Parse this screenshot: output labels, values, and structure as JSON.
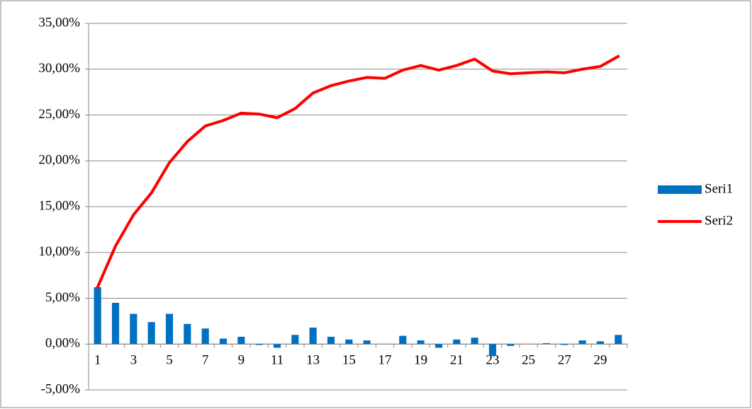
{
  "chart_data": {
    "type": "combo",
    "categories": [
      "1",
      null,
      "3",
      null,
      "5",
      null,
      "7",
      null,
      "9",
      null,
      "11",
      null,
      "13",
      null,
      "15",
      null,
      "17",
      null,
      "19",
      null,
      "21",
      null,
      "23",
      null,
      "25",
      null,
      "27",
      null,
      "29",
      null
    ],
    "series": [
      {
        "name": "Seri1",
        "type": "bar",
        "color": "#0070c0",
        "values": [
          6.2,
          4.5,
          3.3,
          2.4,
          3.3,
          2.2,
          1.7,
          0.6,
          0.8,
          -0.1,
          -0.4,
          1.0,
          1.8,
          0.8,
          0.5,
          0.4,
          0.0,
          0.9,
          0.4,
          -0.4,
          0.5,
          0.7,
          -1.3,
          -0.2,
          0.0,
          0.1,
          -0.1,
          0.4,
          0.3,
          1.0
        ]
      },
      {
        "name": "Seri2",
        "type": "line",
        "color": "#ff0000",
        "values": [
          6.2,
          10.7,
          14.1,
          16.5,
          19.8,
          22.1,
          23.8,
          24.4,
          25.2,
          25.1,
          24.7,
          25.7,
          27.4,
          28.2,
          28.7,
          29.1,
          29.0,
          29.9,
          30.4,
          29.9,
          30.4,
          31.1,
          29.8,
          29.5,
          29.6,
          29.7,
          29.6,
          30.0,
          30.3,
          31.4
        ]
      }
    ],
    "ylim": [
      -5,
      35
    ],
    "yticks": [
      {
        "value": -5,
        "label": "-5,00%"
      },
      {
        "value": 0,
        "label": "0,00%"
      },
      {
        "value": 5,
        "label": "5,00%"
      },
      {
        "value": 10,
        "label": "10,00%"
      },
      {
        "value": 15,
        "label": "15,00%"
      },
      {
        "value": 20,
        "label": "20,00%"
      },
      {
        "value": 25,
        "label": "25,00%"
      },
      {
        "value": 30,
        "label": "30,00%"
      },
      {
        "value": 35,
        "label": "35,00%"
      }
    ],
    "grid": true,
    "legend": "right"
  }
}
